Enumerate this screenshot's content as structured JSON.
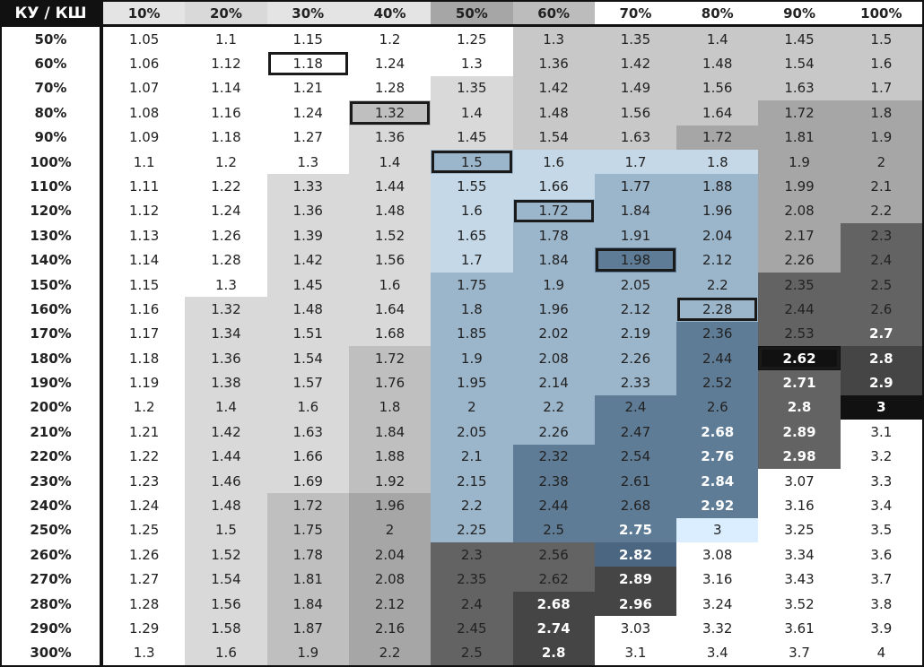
{
  "table": {
    "corner": "КУ / КШ",
    "columns": [
      "10%",
      "20%",
      "30%",
      "40%",
      "50%",
      "60%",
      "70%",
      "80%",
      "90%",
      "100%"
    ],
    "row_labels": [
      "50%",
      "60%",
      "70%",
      "80%",
      "90%",
      "100%",
      "110%",
      "120%",
      "130%",
      "140%",
      "150%",
      "160%",
      "170%",
      "180%",
      "190%",
      "200%",
      "210%",
      "220%",
      "230%",
      "240%",
      "250%",
      "260%",
      "270%",
      "280%",
      "290%",
      "300%"
    ],
    "cells": [
      [
        1.05,
        1.1,
        1.15,
        1.2,
        1.25,
        1.3,
        1.35,
        1.4,
        1.45,
        1.5
      ],
      [
        1.06,
        1.12,
        1.18,
        1.24,
        1.3,
        1.36,
        1.42,
        1.48,
        1.54,
        1.6
      ],
      [
        1.07,
        1.14,
        1.21,
        1.28,
        1.35,
        1.42,
        1.49,
        1.56,
        1.63,
        1.7
      ],
      [
        1.08,
        1.16,
        1.24,
        1.32,
        1.4,
        1.48,
        1.56,
        1.64,
        1.72,
        1.8
      ],
      [
        1.09,
        1.18,
        1.27,
        1.36,
        1.45,
        1.54,
        1.63,
        1.72,
        1.81,
        1.9
      ],
      [
        1.1,
        1.2,
        1.3,
        1.4,
        1.5,
        1.6,
        1.7,
        1.8,
        1.9,
        2
      ],
      [
        1.11,
        1.22,
        1.33,
        1.44,
        1.55,
        1.66,
        1.77,
        1.88,
        1.99,
        2.1
      ],
      [
        1.12,
        1.24,
        1.36,
        1.48,
        1.6,
        1.72,
        1.84,
        1.96,
        2.08,
        2.2
      ],
      [
        1.13,
        1.26,
        1.39,
        1.52,
        1.65,
        1.78,
        1.91,
        2.04,
        2.17,
        2.3
      ],
      [
        1.14,
        1.28,
        1.42,
        1.56,
        1.7,
        1.84,
        1.98,
        2.12,
        2.26,
        2.4
      ],
      [
        1.15,
        1.3,
        1.45,
        1.6,
        1.75,
        1.9,
        2.05,
        2.2,
        2.35,
        2.5
      ],
      [
        1.16,
        1.32,
        1.48,
        1.64,
        1.8,
        1.96,
        2.12,
        2.28,
        2.44,
        2.6
      ],
      [
        1.17,
        1.34,
        1.51,
        1.68,
        1.85,
        2.02,
        2.19,
        2.36,
        2.53,
        2.7
      ],
      [
        1.18,
        1.36,
        1.54,
        1.72,
        1.9,
        2.08,
        2.26,
        2.44,
        2.62,
        2.8
      ],
      [
        1.19,
        1.38,
        1.57,
        1.76,
        1.95,
        2.14,
        2.33,
        2.52,
        2.71,
        2.9
      ],
      [
        1.2,
        1.4,
        1.6,
        1.8,
        2,
        2.2,
        2.4,
        2.6,
        2.8,
        3
      ],
      [
        1.21,
        1.42,
        1.63,
        1.84,
        2.05,
        2.26,
        2.47,
        2.68,
        2.89,
        3.1
      ],
      [
        1.22,
        1.44,
        1.66,
        1.88,
        2.1,
        2.32,
        2.54,
        2.76,
        2.98,
        3.2
      ],
      [
        1.23,
        1.46,
        1.69,
        1.92,
        2.15,
        2.38,
        2.61,
        2.84,
        3.07,
        3.3
      ],
      [
        1.24,
        1.48,
        1.72,
        1.96,
        2.2,
        2.44,
        2.68,
        2.92,
        3.16,
        3.4
      ],
      [
        1.25,
        1.5,
        1.75,
        2,
        2.25,
        2.5,
        2.75,
        3,
        3.25,
        3.5
      ],
      [
        1.26,
        1.52,
        1.78,
        2.04,
        2.3,
        2.56,
        2.82,
        3.08,
        3.34,
        3.6
      ],
      [
        1.27,
        1.54,
        1.81,
        2.08,
        2.35,
        2.62,
        2.89,
        3.16,
        3.43,
        3.7
      ],
      [
        1.28,
        1.56,
        1.84,
        2.12,
        2.4,
        2.68,
        2.96,
        3.24,
        3.52,
        3.8
      ],
      [
        1.29,
        1.58,
        1.87,
        2.16,
        2.45,
        2.74,
        3.03,
        3.32,
        3.61,
        3.9
      ],
      [
        1.3,
        1.6,
        1.9,
        2.2,
        2.5,
        2.8,
        3.1,
        3.4,
        3.7,
        4
      ]
    ]
  }
}
